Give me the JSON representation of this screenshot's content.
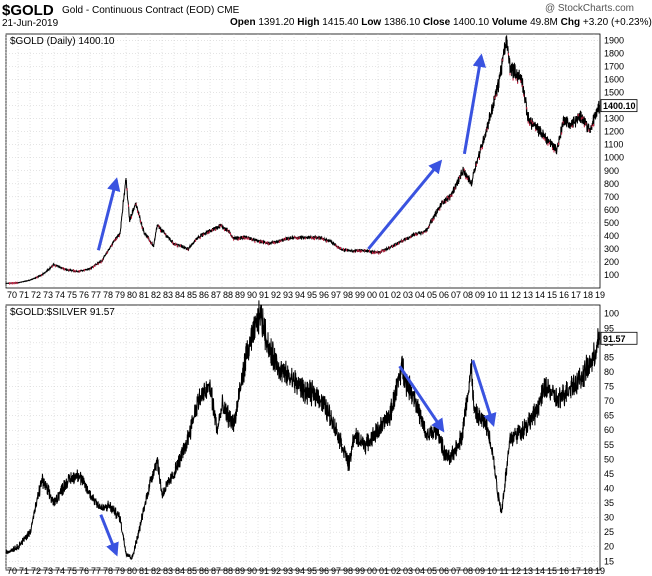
{
  "header": {
    "symbol": "$GOLD",
    "contract": "Gold - Continuous Contract (EOD) CME",
    "date": "21-Jun-2019",
    "brand": "@ StockCharts.com",
    "open_label": "Open",
    "open": "1391.20",
    "high_label": "High",
    "high": "1415.40",
    "low_label": "Low",
    "low": "1386.10",
    "close_label": "Close",
    "close": "1400.10",
    "volume_label": "Volume",
    "volume": "49.8M",
    "chg_label": "Chg",
    "chg": "+3.20 (+0.23%)"
  },
  "colors": {
    "price": "#000000",
    "down": "#cc2244",
    "arrow": "#3a53e0",
    "grid": "#c8c8c8"
  },
  "chart_data": [
    {
      "type": "line",
      "panel_label": "$GOLD (Daily) 1400.10",
      "last_value_label": "1400.10",
      "yscale": "linear",
      "ylim": [
        0,
        1950
      ],
      "yticks": [
        100,
        200,
        300,
        400,
        500,
        600,
        700,
        800,
        900,
        1000,
        1100,
        1200,
        1300,
        1400,
        1500,
        1600,
        1700,
        1800,
        1900
      ],
      "xlim": [
        1970,
        2019.5
      ],
      "x": [
        1970,
        1971,
        1972,
        1973,
        1974,
        1975,
        1976,
        1977,
        1978,
        1979,
        1979.5,
        1980.0,
        1980.3,
        1980.8,
        1981.5,
        1982.3,
        1982.6,
        1983.2,
        1984,
        1985.2,
        1986,
        1987.9,
        1988.5,
        1989,
        1990,
        1991,
        1992,
        1993.6,
        1994,
        1995,
        1996,
        1997,
        1998,
        1999,
        1999.7,
        2001,
        2002,
        2003,
        2004,
        2005,
        2006,
        2006.4,
        2007,
        2008.1,
        2008.8,
        2009,
        2010,
        2011,
        2011.7,
        2012,
        2013,
        2013.5,
        2014,
        2015,
        2015.9,
        2016.5,
        2017,
        2018,
        2018.7,
        2019,
        2019.45
      ],
      "y": [
        35,
        40,
        60,
        100,
        180,
        140,
        125,
        150,
        210,
        360,
        420,
        840,
        520,
        650,
        430,
        320,
        480,
        420,
        340,
        300,
        390,
        480,
        440,
        380,
        390,
        360,
        340,
        380,
        385,
        385,
        390,
        360,
        295,
        285,
        290,
        270,
        310,
        360,
        410,
        440,
        600,
        660,
        700,
        900,
        800,
        900,
        1200,
        1550,
        1900,
        1700,
        1600,
        1300,
        1250,
        1150,
        1060,
        1300,
        1250,
        1320,
        1200,
        1300,
        1400
      ]
    },
    {
      "type": "line",
      "panel_label": "$GOLD:$SILVER 91.57",
      "last_value_label": "91.57",
      "yscale": "linear",
      "ylim": [
        12,
        103
      ],
      "yticks": [
        15,
        20,
        25,
        30,
        35,
        40,
        45,
        50,
        55,
        60,
        65,
        70,
        75,
        80,
        85,
        90,
        95,
        100
      ],
      "xlim": [
        1970,
        2019.5
      ],
      "x": [
        1970,
        1971,
        1972,
        1973,
        1974,
        1975,
        1976,
        1977,
        1978,
        1978.6,
        1979.5,
        1980,
        1980.5,
        1981,
        1982,
        1982.6,
        1983,
        1984,
        1985,
        1986,
        1987,
        1987.6,
        1988,
        1989,
        1990,
        1991,
        1991.2,
        1992,
        1993,
        1994,
        1995,
        1996,
        1997,
        1998,
        1998.6,
        1999,
        2000,
        2001,
        2002,
        2003,
        2003.4,
        2004,
        2005,
        2006,
        2006.5,
        2007,
        2008,
        2008.8,
        2009,
        2010,
        2010.5,
        2011,
        2011.3,
        2012,
        2013,
        2014,
        2015,
        2016,
        2017,
        2018,
        2019,
        2019.45
      ],
      "y": [
        18,
        20,
        25,
        43,
        35,
        42,
        45,
        38,
        33,
        34,
        30,
        18,
        16,
        24,
        42,
        50,
        38,
        45,
        55,
        70,
        75,
        60,
        68,
        62,
        85,
        98,
        100,
        87,
        80,
        77,
        73,
        72,
        65,
        55,
        48,
        58,
        55,
        60,
        65,
        82,
        76,
        72,
        58,
        60,
        52,
        50,
        58,
        82,
        66,
        62,
        54,
        38,
        32,
        57,
        60,
        65,
        75,
        70,
        75,
        78,
        85,
        91.57
      ]
    }
  ],
  "x_axis": {
    "tick_labels": [
      "70",
      "71",
      "72",
      "73",
      "74",
      "75",
      "76",
      "77",
      "78",
      "79",
      "80",
      "81",
      "82",
      "83",
      "84",
      "85",
      "86",
      "87",
      "88",
      "89",
      "90",
      "91",
      "92",
      "93",
      "94",
      "95",
      "96",
      "97",
      "98",
      "99",
      "00",
      "01",
      "02",
      "03",
      "04",
      "05",
      "06",
      "07",
      "08",
      "09",
      "10",
      "11",
      "12",
      "13",
      "14",
      "15",
      "16",
      "17",
      "18",
      "19"
    ]
  },
  "annotations": {
    "gold_arrows": [
      {
        "from": [
          1977.7,
          290
        ],
        "to": [
          1979.2,
          830
        ]
      },
      {
        "from": [
          2000.2,
          300
        ],
        "to": [
          2006.2,
          970
        ]
      },
      {
        "from": [
          2008.2,
          1030
        ],
        "to": [
          2009.6,
          1780
        ]
      }
    ],
    "ratio_arrows": [
      {
        "from": [
          1977.9,
          31
        ],
        "to": [
          1979.2,
          17.5
        ]
      },
      {
        "from": [
          2002.8,
          82
        ],
        "to": [
          2006.4,
          60
        ]
      },
      {
        "from": [
          2008.9,
          84
        ],
        "to": [
          2010.6,
          62
        ]
      }
    ]
  }
}
